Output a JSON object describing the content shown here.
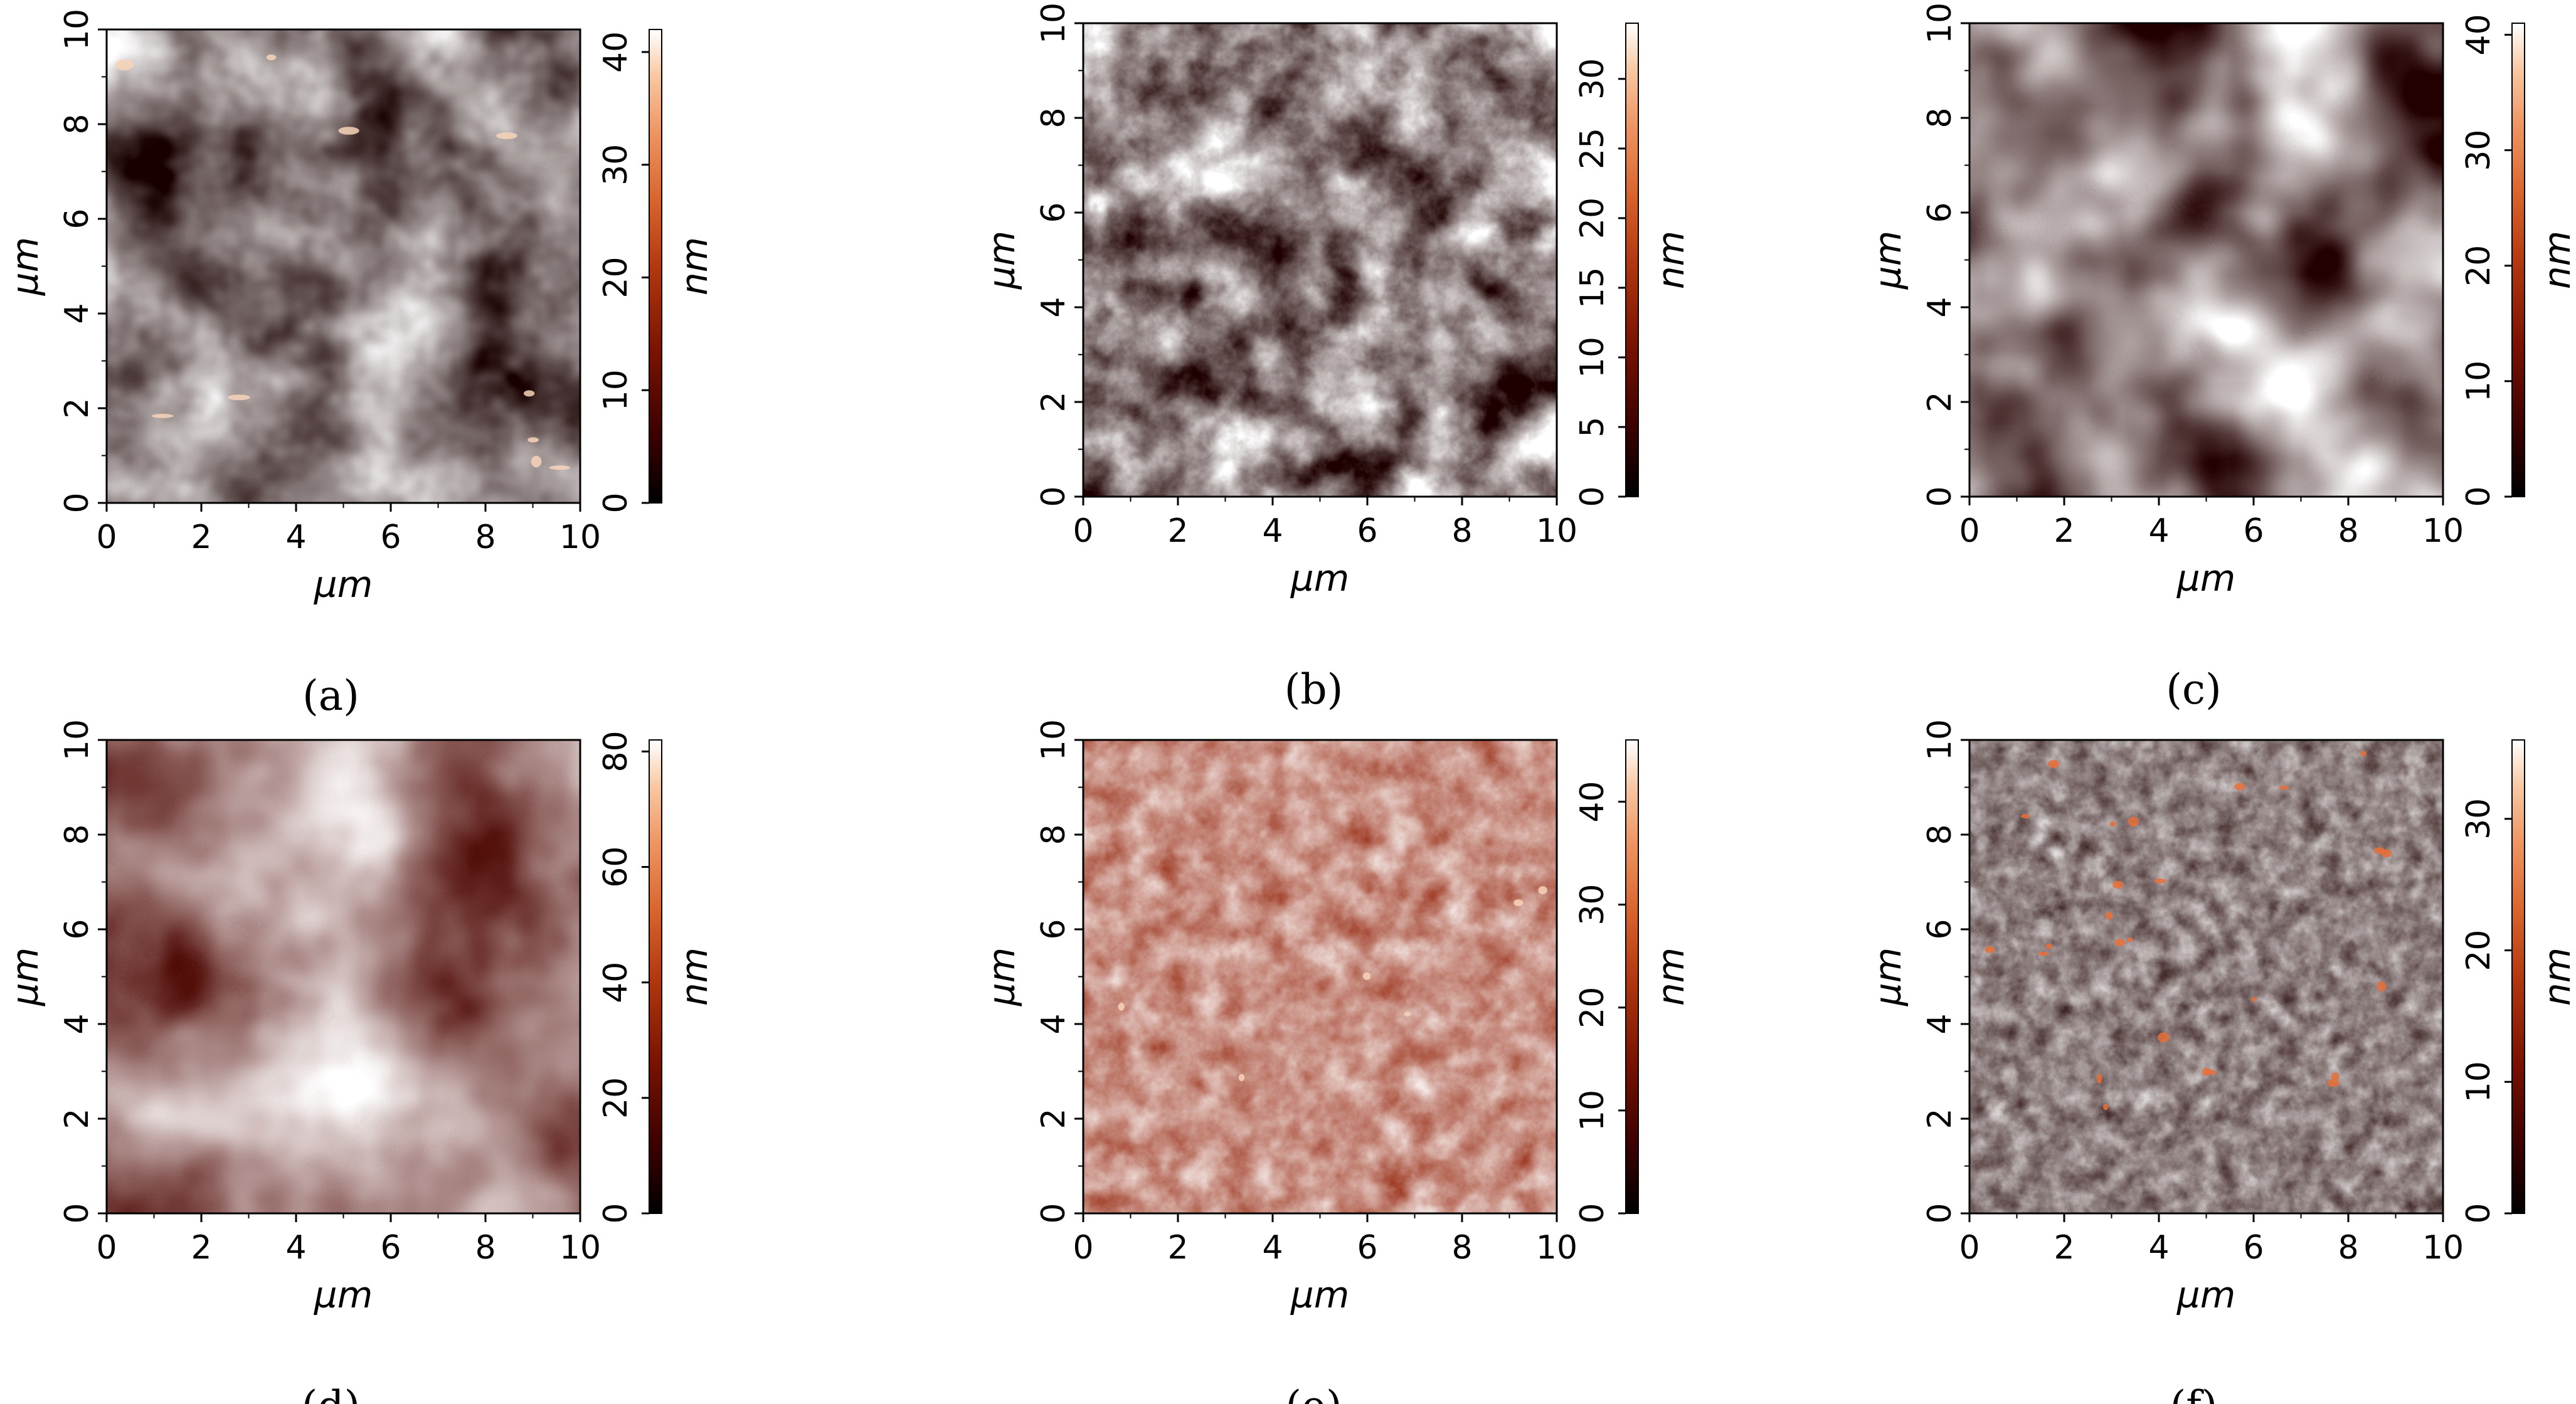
{
  "colors": {
    "colormap": [
      "#000000",
      "#3a0000",
      "#7a1200",
      "#b3390f",
      "#d9652d",
      "#ee9460",
      "#f8c7a2",
      "#ffffff"
    ],
    "axis": "#000000",
    "background": "#ffffff"
  },
  "chart_data": [
    {
      "type": "heatmap",
      "panel_label": "(a)",
      "xlabel": "µm",
      "ylabel": "µm",
      "colorbar_label": "nm",
      "xlim": [
        0,
        10
      ],
      "ylim": [
        0,
        10
      ],
      "x_ticks": [
        "0",
        "2",
        "4",
        "6",
        "8",
        "10"
      ],
      "y_ticks": [
        "0",
        "2",
        "4",
        "6",
        "8",
        "10"
      ],
      "color_range": [
        0,
        42
      ],
      "colorbar_ticks": [
        "0",
        "10",
        "20",
        "30",
        "40"
      ],
      "texture": "rounded grains with bright facets"
    },
    {
      "type": "heatmap",
      "panel_label": "(b)",
      "xlabel": "µm",
      "ylabel": "µm",
      "colorbar_label": "nm",
      "xlim": [
        0,
        10
      ],
      "ylim": [
        0,
        10
      ],
      "x_ticks": [
        "0",
        "2",
        "4",
        "6",
        "8",
        "10"
      ],
      "y_ticks": [
        "0",
        "2",
        "4",
        "6",
        "8",
        "10"
      ],
      "color_range": [
        0,
        34
      ],
      "colorbar_ticks": [
        "0",
        "5",
        "10",
        "15",
        "20",
        "25",
        "30"
      ],
      "texture": "mottled grainy domains"
    },
    {
      "type": "heatmap",
      "panel_label": "(c)",
      "xlabel": "µm",
      "ylabel": "µm",
      "colorbar_label": "nm",
      "xlim": [
        0,
        10
      ],
      "ylim": [
        0,
        10
      ],
      "x_ticks": [
        "0",
        "2",
        "4",
        "6",
        "8",
        "10"
      ],
      "y_ticks": [
        "0",
        "2",
        "4",
        "6",
        "8",
        "10"
      ],
      "color_range": [
        0,
        41
      ],
      "colorbar_ticks": [
        "0",
        "10",
        "20",
        "30",
        "40"
      ],
      "texture": "smooth blobs"
    },
    {
      "type": "heatmap",
      "panel_label": "(d)",
      "xlabel": "µm",
      "ylabel": "µm",
      "colorbar_label": "nm",
      "xlim": [
        0,
        10
      ],
      "ylim": [
        0,
        10
      ],
      "x_ticks": [
        "0",
        "2",
        "4",
        "6",
        "8",
        "10"
      ],
      "y_ticks": [
        "0",
        "2",
        "4",
        "6",
        "8",
        "10"
      ],
      "color_range": [
        0,
        82
      ],
      "colorbar_ticks": [
        "0",
        "20",
        "40",
        "60",
        "80"
      ],
      "texture": "broad diagonal ridge"
    },
    {
      "type": "heatmap",
      "panel_label": "(e)",
      "xlabel": "µm",
      "ylabel": "µm",
      "colorbar_label": "nm",
      "xlim": [
        0,
        10
      ],
      "ylim": [
        0,
        10
      ],
      "x_ticks": [
        "0",
        "2",
        "4",
        "6",
        "8",
        "10"
      ],
      "y_ticks": [
        "0",
        "2",
        "4",
        "6",
        "8",
        "10"
      ],
      "color_range": [
        0,
        46
      ],
      "colorbar_ticks": [
        "0",
        "10",
        "20",
        "30",
        "40"
      ],
      "texture": "fine uniform noise with faint bands"
    },
    {
      "type": "heatmap",
      "panel_label": "(f)",
      "xlabel": "µm",
      "ylabel": "µm",
      "colorbar_label": "nm",
      "xlim": [
        0,
        10
      ],
      "ylim": [
        0,
        10
      ],
      "x_ticks": [
        "0",
        "2",
        "4",
        "6",
        "8",
        "10"
      ],
      "y_ticks": [
        "0",
        "2",
        "4",
        "6",
        "8",
        "10"
      ],
      "color_range": [
        0,
        36
      ],
      "colorbar_ticks": [
        "0",
        "10",
        "20",
        "30"
      ],
      "texture": "dark flat with sparse bright specks"
    }
  ]
}
